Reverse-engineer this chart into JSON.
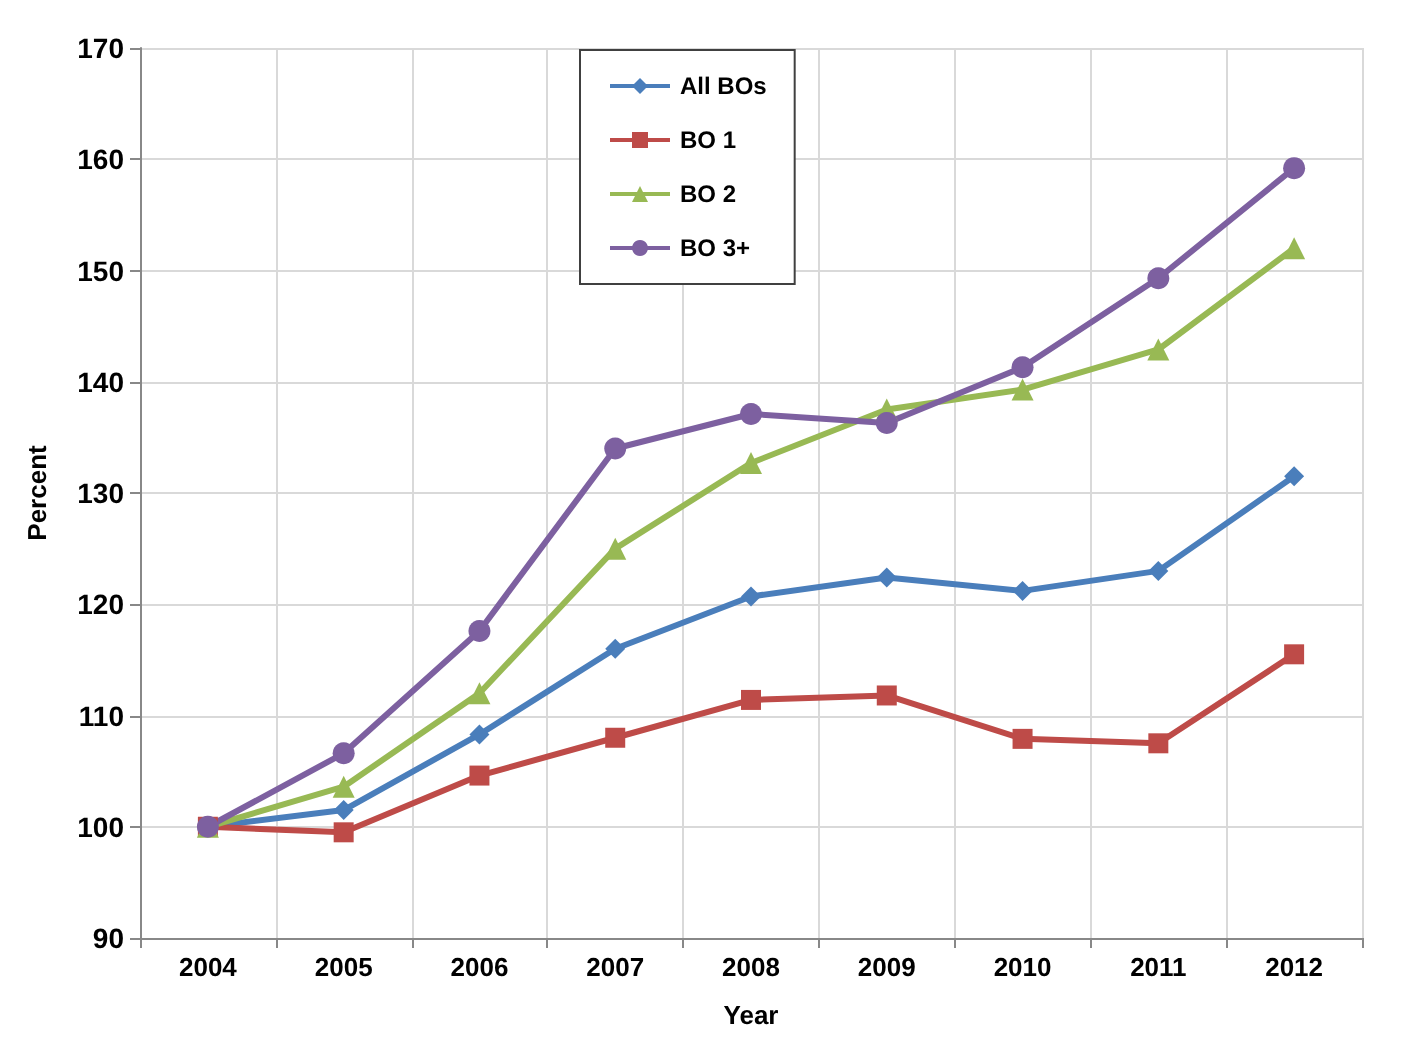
{
  "chart_data": {
    "type": "line",
    "xlabel": "Year",
    "ylabel": "Percent",
    "categories": [
      "2004",
      "2005",
      "2006",
      "2007",
      "2008",
      "2009",
      "2010",
      "2011",
      "2012"
    ],
    "series": [
      {
        "name": "All BOs",
        "color": "#4a7ebb",
        "marker": "diamond",
        "values": [
          100,
          101.5,
          108.3,
          116,
          120.7,
          122.4,
          121.2,
          123,
          131.5
        ]
      },
      {
        "name": "BO 1",
        "color": "#be4b48",
        "marker": "square",
        "values": [
          100,
          99.5,
          104.6,
          108,
          111.4,
          111.8,
          107.9,
          107.5,
          115.5
        ]
      },
      {
        "name": "BO 2",
        "color": "#98b954",
        "marker": "triangle",
        "values": [
          100,
          103.6,
          112,
          125,
          132.7,
          137.5,
          139.3,
          142.9,
          152
        ]
      },
      {
        "name": "BO 3+",
        "color": "#7d60a0",
        "marker": "circle",
        "values": [
          100,
          106.6,
          117.6,
          134,
          137.1,
          136.3,
          141.3,
          149.3,
          159.2
        ]
      }
    ],
    "ylim": [
      90,
      170
    ],
    "yticks": [
      90,
      100,
      110,
      120,
      130,
      140,
      150,
      160,
      170
    ],
    "grid": true,
    "legend": "top"
  }
}
